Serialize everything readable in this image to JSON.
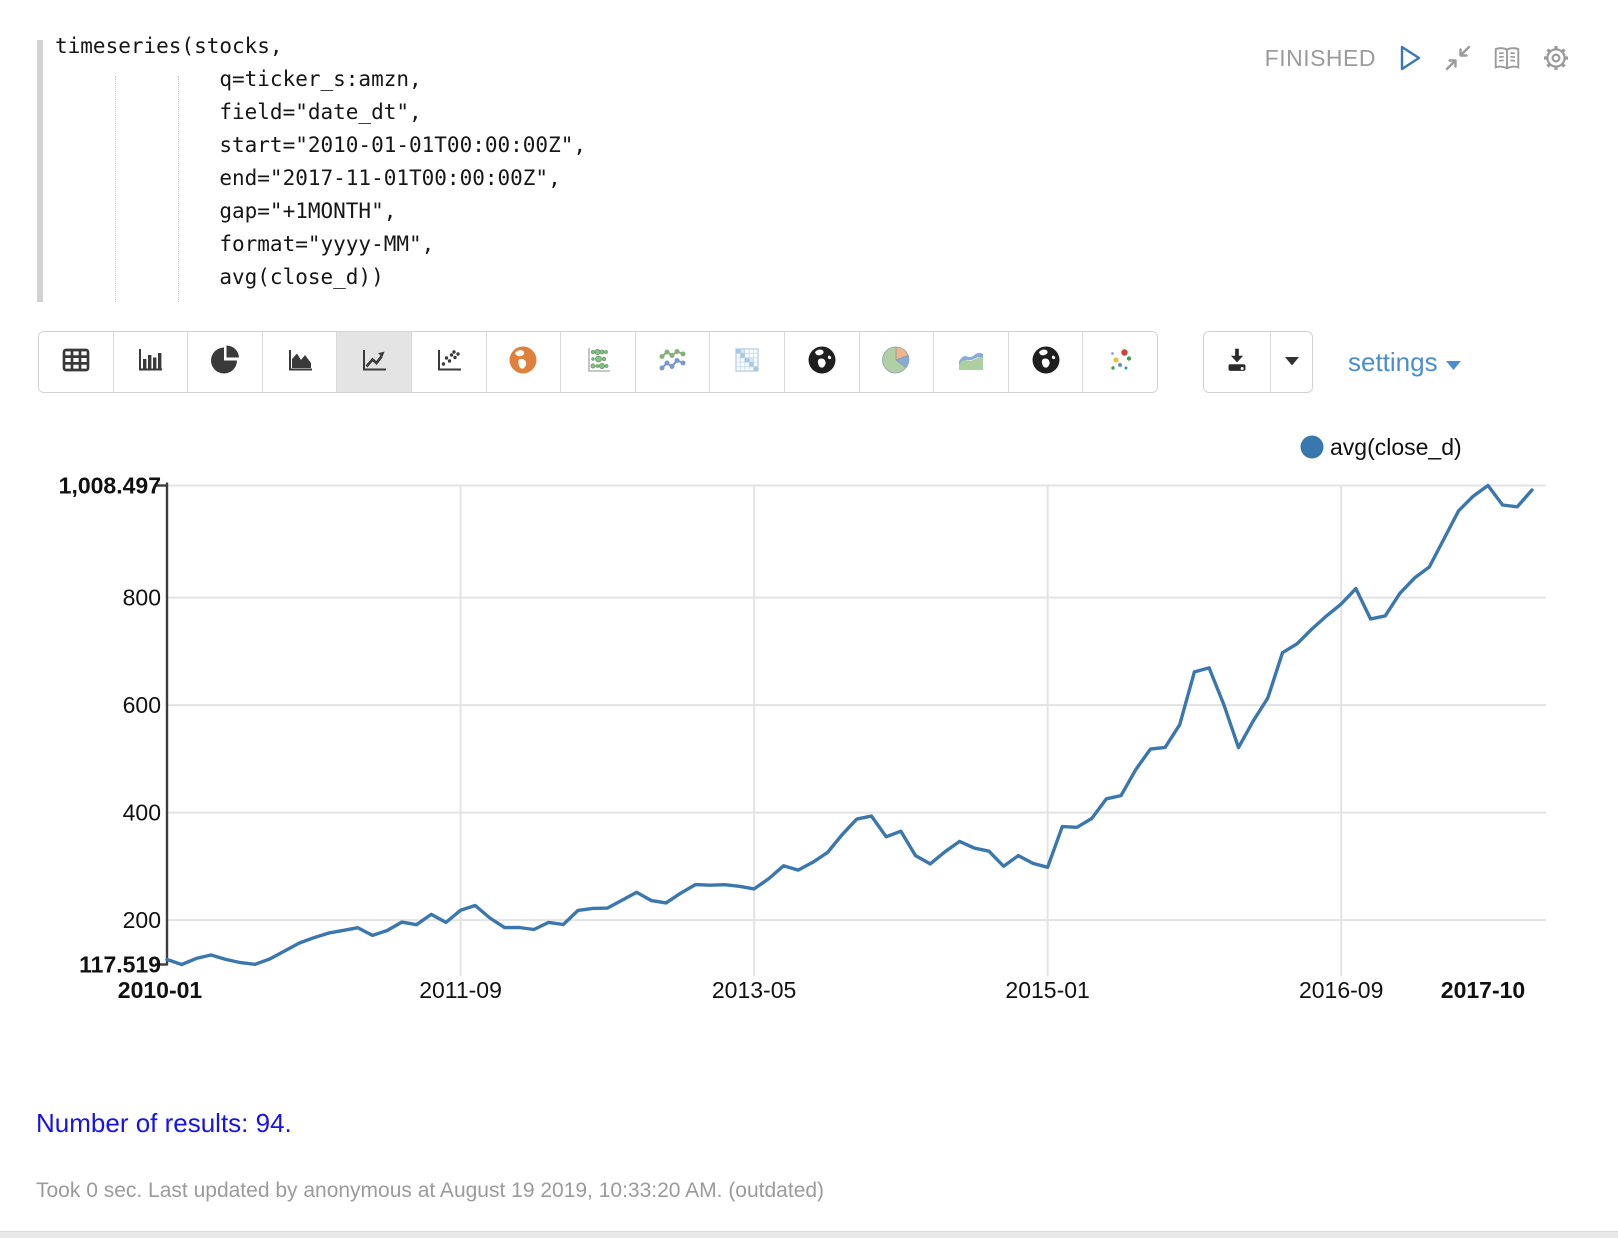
{
  "editor": {
    "code": "timeseries(stocks,\n             q=ticker_s:amzn,\n             field=\"date_dt\",\n             start=\"2010-01-01T00:00:00Z\",\n             end=\"2017-11-01T00:00:00Z\",\n             gap=\"+1MONTH\",\n             format=\"yyyy-MM\",\n             avg(close_d))"
  },
  "status": {
    "label": "FINISHED"
  },
  "toolbar": {
    "chart_types": [
      "table",
      "bar-chart",
      "pie-chart",
      "area-chart",
      "line-chart",
      "scatter-plot",
      "map",
      "bubble-grid",
      "multi-line-chart",
      "heatmap",
      "globe",
      "pie-chart-colored",
      "stacked-area-chart",
      "globe-alt",
      "scatter-colored"
    ],
    "selected": "line-chart",
    "settings_label": "settings"
  },
  "chart_data": {
    "type": "line",
    "legend": "avg(close_d)",
    "series_color": "#3b77af",
    "grid": true,
    "legend_position": "top-right",
    "ylim": [
      117.519,
      1008.497
    ],
    "y_tick_labels": [
      "1,008.497",
      "800",
      "600",
      "400",
      "200",
      "117.519"
    ],
    "y_tick_values": [
      1008.497,
      800,
      600,
      400,
      200,
      117.519
    ],
    "y_gridline_values": [
      1008.497,
      800,
      600,
      400,
      200
    ],
    "x_tick_labels": [
      "2010-01",
      "2011-09",
      "2013-05",
      "2015-01",
      "2016-09",
      "2017-10"
    ],
    "x_tick_indices": [
      0,
      20,
      40,
      60,
      80,
      93
    ],
    "x_gridline_indices": [
      20,
      40,
      60,
      80
    ],
    "months": [
      "2010-01",
      "2010-02",
      "2010-03",
      "2010-04",
      "2010-05",
      "2010-06",
      "2010-07",
      "2010-08",
      "2010-09",
      "2010-10",
      "2010-11",
      "2010-12",
      "2011-01",
      "2011-02",
      "2011-03",
      "2011-04",
      "2011-05",
      "2011-06",
      "2011-07",
      "2011-08",
      "2011-09",
      "2011-10",
      "2011-11",
      "2011-12",
      "2012-01",
      "2012-02",
      "2012-03",
      "2012-04",
      "2012-05",
      "2012-06",
      "2012-07",
      "2012-08",
      "2012-09",
      "2012-10",
      "2012-11",
      "2012-12",
      "2013-01",
      "2013-02",
      "2013-03",
      "2013-04",
      "2013-05",
      "2013-06",
      "2013-07",
      "2013-08",
      "2013-09",
      "2013-10",
      "2013-11",
      "2013-12",
      "2014-01",
      "2014-02",
      "2014-03",
      "2014-04",
      "2014-05",
      "2014-06",
      "2014-07",
      "2014-08",
      "2014-09",
      "2014-10",
      "2014-11",
      "2014-12",
      "2015-01",
      "2015-02",
      "2015-03",
      "2015-04",
      "2015-05",
      "2015-06",
      "2015-07",
      "2015-08",
      "2015-09",
      "2015-10",
      "2015-11",
      "2015-12",
      "2016-01",
      "2016-02",
      "2016-03",
      "2016-04",
      "2016-05",
      "2016-06",
      "2016-07",
      "2016-08",
      "2016-09",
      "2016-10",
      "2016-11",
      "2016-12",
      "2017-01",
      "2017-02",
      "2017-03",
      "2017-04",
      "2017-05",
      "2017-06",
      "2017-07",
      "2017-08",
      "2017-09",
      "2017-10"
    ],
    "values": [
      126.9,
      117.519,
      128.8,
      135.1,
      127.0,
      121.0,
      117.9,
      127.7,
      142.5,
      157.3,
      167.4,
      176.0,
      180.9,
      185.9,
      171.6,
      180.7,
      196.4,
      191.6,
      210.7,
      195.9,
      218.4,
      227.3,
      204.0,
      186.2,
      186.4,
      182.7,
      195.8,
      191.9,
      218.2,
      221.8,
      222.5,
      236.9,
      251.9,
      236.3,
      232.1,
      250.1,
      266.2,
      265.0,
      265.9,
      263.0,
      258.1,
      277.3,
      301.2,
      293.1,
      307.7,
      325.9,
      359.1,
      387.9,
      393.6,
      355.0,
      365.5,
      320.1,
      304.6,
      327.1,
      346.5,
      334.0,
      328.3,
      300.4,
      320.0,
      305.5,
      298.4,
      374.1,
      372.8,
      389.0,
      425.8,
      431.6,
      479.8,
      518.1,
      521.3,
      563.5,
      661.8,
      669.3,
      601.1,
      521.0,
      570.0,
      613.2,
      697.5,
      714.3,
      741.3,
      766.0,
      788.1,
      816.7,
      760.3,
      766.0,
      808.0,
      836.6,
      856.9,
      909.0,
      961.4,
      988.7,
      1008.497,
      972.3,
      968.9,
      1000.2
    ]
  },
  "footer": {
    "results": "Number of results: 94.",
    "status_line": "Took 0 sec. Last updated by anonymous at August 19 2019, 10:33:20 AM. (outdated)"
  },
  "colors": {
    "line": "#3b77af",
    "settings_blue": "#4a8ed1",
    "results_blue": "#1512ee",
    "status_gray": "#9b9b9b",
    "selected_button_bg": "#e4e4e4"
  }
}
